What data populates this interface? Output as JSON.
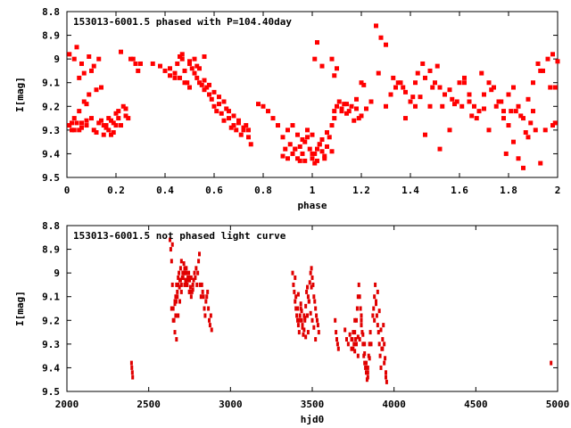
{
  "chart_data": [
    {
      "type": "scatter",
      "title": "153013-6001.5 phased with P=104.40day",
      "xlabel": "phase",
      "ylabel": "I[mag]",
      "xlim": [
        0,
        2
      ],
      "ylim": [
        9.5,
        8.8
      ],
      "y_inverted": true,
      "xticks": [
        "0",
        "0.2",
        "0.4",
        "0.6",
        "0.8",
        "1",
        "1.2",
        "1.4",
        "1.6",
        "1.8",
        "2"
      ],
      "yticks": [
        "8.8",
        "8.9",
        "9",
        "9.1",
        "9.2",
        "9.3",
        "9.4",
        "9.5"
      ],
      "marker_color": "#ff0000",
      "marker": "star",
      "series": [
        {
          "x": [
            0.01,
            0.02,
            0.03,
            0.04,
            0.05,
            0.06,
            0.07,
            0.08,
            0.09,
            0.1,
            0.11,
            0.12,
            0.13,
            0.14,
            0.15,
            0.16,
            0.17,
            0.18,
            0.19,
            0.2,
            0.21,
            0.22,
            0.23,
            0.24,
            0.25,
            0.26,
            0.27,
            0.28,
            0.29,
            0.3,
            0.01,
            0.03,
            0.05,
            0.07,
            0.09,
            0.12,
            0.15,
            0.18,
            0.21,
            0.24,
            0.03,
            0.06,
            0.1,
            0.14,
            0.2,
            0.05,
            0.08,
            0.11,
            0.16,
            0.19,
            0.22,
            0.02,
            0.04,
            0.06,
            0.08,
            0.13,
            0.17,
            0.35,
            0.38,
            0.4,
            0.42,
            0.44,
            0.45,
            0.46,
            0.47,
            0.48,
            0.49,
            0.5,
            0.51,
            0.52,
            0.53,
            0.54,
            0.55,
            0.56,
            0.57,
            0.58,
            0.59,
            0.6,
            0.61,
            0.62,
            0.63,
            0.64,
            0.65,
            0.66,
            0.67,
            0.68,
            0.69,
            0.7,
            0.71,
            0.72,
            0.73,
            0.74,
            0.75,
            0.42,
            0.44,
            0.46,
            0.48,
            0.5,
            0.52,
            0.54,
            0.56,
            0.58,
            0.6,
            0.62,
            0.64,
            0.66,
            0.68,
            0.7,
            0.72,
            0.74,
            0.47,
            0.5,
            0.53,
            0.56,
            0.78,
            0.8,
            0.82,
            0.84,
            0.86,
            0.88,
            0.89,
            0.9,
            0.91,
            0.92,
            0.93,
            0.94,
            0.95,
            0.96,
            0.97,
            0.98,
            0.99,
            1.0,
            1.01,
            1.02,
            1.03,
            1.04,
            1.05,
            1.06,
            1.07,
            1.08,
            1.09,
            1.1,
            1.11,
            1.12,
            1.13,
            1.14,
            1.15,
            1.16,
            1.17,
            1.18,
            1.19,
            1.2,
            1.22,
            1.24,
            0.9,
            0.92,
            0.94,
            0.96,
            0.98,
            1.0,
            1.02,
            1.04,
            0.93,
            0.97,
            1.01,
            1.05,
            1.08,
            0.88,
            0.95,
            1.0,
            1.03,
            1.06,
            1.09,
            1.12,
            1.14,
            1.18,
            1.01,
            1.02,
            1.04,
            1.08,
            1.09,
            1.1,
            1.2,
            1.21,
            1.26,
            1.28,
            1.3,
            1.27,
            1.3,
            1.32,
            1.34,
            1.36,
            1.38,
            1.4,
            1.42,
            1.44,
            1.46,
            1.48,
            1.5,
            1.52,
            1.54,
            1.56,
            1.58,
            1.6,
            1.62,
            1.64,
            1.66,
            1.68,
            1.7,
            1.72,
            1.74,
            1.76,
            1.78,
            1.8,
            1.82,
            1.84,
            1.86,
            1.88,
            1.9,
            1.92,
            1.94,
            1.96,
            1.98,
            2.0,
            1.33,
            1.37,
            1.41,
            1.45,
            1.49,
            1.53,
            1.57,
            1.61,
            1.65,
            1.69,
            1.73,
            1.77,
            1.81,
            1.85,
            1.89,
            1.93,
            1.97,
            1.35,
            1.43,
            1.51,
            1.59,
            1.67,
            1.75,
            1.83,
            1.91,
            1.99,
            1.38,
            1.46,
            1.52,
            1.62,
            1.7,
            1.78,
            1.8,
            1.82,
            1.84,
            1.86,
            1.88,
            1.9,
            1.95,
            1.98,
            1.42,
            1.48,
            1.56,
            1.64,
            1.72,
            1.79,
            1.87,
            1.93,
            1.99
          ],
          "y": [
            8.98,
            9.27,
            9.0,
            8.95,
            9.3,
            9.02,
            9.06,
            9.28,
            8.99,
            9.25,
            9.03,
            9.31,
            9.0,
            9.26,
            9.32,
            9.28,
            9.3,
            9.26,
            9.27,
            9.23,
            9.22,
            8.97,
            9.2,
            9.21,
            9.25,
            9.0,
            9.0,
            9.02,
            9.05,
            9.02,
            9.28,
            9.25,
            9.22,
            9.18,
            9.15,
            9.13,
            9.28,
            9.32,
            9.25,
            9.24,
            9.3,
            9.27,
            9.05,
            9.12,
            9.28,
            9.08,
            9.19,
            9.3,
            9.29,
            9.31,
            9.28,
            9.3,
            9.27,
            9.29,
            9.26,
            9.27,
            9.25,
            9.02,
            9.03,
            9.05,
            9.07,
            9.08,
            9.02,
            8.99,
            9.0,
            9.05,
            9.1,
            9.02,
            9.04,
            9.06,
            9.08,
            9.1,
            9.11,
            9.13,
            9.12,
            9.15,
            9.17,
            9.2,
            9.22,
            9.19,
            9.23,
            9.26,
            9.21,
            9.25,
            9.29,
            9.28,
            9.3,
            9.26,
            9.32,
            9.3,
            9.28,
            9.33,
            9.36,
            9.04,
            9.06,
            9.08,
            9.1,
            9.12,
            9.0,
            9.04,
            9.09,
            9.11,
            9.14,
            9.16,
            9.18,
            9.22,
            9.24,
            9.27,
            9.29,
            9.3,
            8.98,
            9.01,
            9.03,
            8.99,
            9.19,
            9.2,
            9.22,
            9.25,
            9.28,
            9.33,
            9.38,
            9.42,
            9.36,
            9.4,
            9.38,
            9.42,
            9.37,
            9.4,
            9.35,
            9.33,
            9.38,
            9.42,
            9.4,
            9.43,
            9.36,
            9.39,
            9.42,
            9.37,
            9.33,
            9.28,
            9.22,
            9.2,
            9.18,
            9.21,
            9.19,
            9.23,
            9.22,
            9.2,
            9.26,
            9.21,
            9.25,
            9.24,
            9.21,
            9.18,
            9.3,
            9.28,
            9.32,
            9.34,
            9.3,
            9.32,
            9.38,
            9.34,
            9.38,
            9.43,
            9.44,
            9.41,
            9.39,
            9.41,
            9.43,
            9.4,
            9.36,
            9.31,
            9.25,
            9.22,
            9.19,
            9.17,
            9.0,
            8.93,
            9.03,
            9.0,
            9.07,
            9.04,
            9.1,
            9.11,
            8.86,
            8.91,
            8.94,
            9.06,
            9.2,
            9.15,
            9.12,
            9.1,
            9.14,
            9.18,
            9.2,
            9.16,
            9.08,
            9.05,
            9.1,
            9.12,
            9.15,
            9.13,
            9.19,
            9.1,
            9.08,
            9.15,
            9.2,
            9.22,
            9.15,
            9.1,
            9.12,
            9.18,
            9.22,
            9.15,
            9.12,
            9.2,
            9.25,
            9.17,
            9.1,
            9.02,
            9.05,
            9.0,
            8.98,
            9.01,
            9.08,
            9.12,
            9.16,
            9.02,
            9.12,
            9.2,
            9.17,
            9.2,
            9.24,
            9.06,
            9.13,
            9.18,
            9.22,
            9.24,
            9.27,
            9.05,
            9.12,
            9.1,
            9.06,
            9.03,
            9.18,
            9.25,
            9.2,
            9.22,
            9.3,
            9.27,
            9.25,
            9.32,
            9.38,
            9.1,
            9.21,
            9.25,
            9.28,
            9.35,
            9.42,
            9.46,
            9.33,
            9.22,
            9.3,
            9.28,
            9.1,
            9.2,
            9.3,
            9.18,
            9.3,
            9.4,
            9.31,
            9.44,
            9.12
          ]
        }
      ]
    },
    {
      "type": "scatter",
      "title": "153013-6001.5 not phased light curve",
      "xlabel": "hjd0",
      "ylabel": "I[mag]",
      "xlim": [
        2000,
        5000
      ],
      "ylim": [
        9.5,
        8.8
      ],
      "y_inverted": true,
      "xticks": [
        "2000",
        "2500",
        "3000",
        "3500",
        "4000",
        "4500",
        "5000"
      ],
      "yticks": [
        "8.8",
        "8.9",
        "9",
        "9.1",
        "9.2",
        "9.3",
        "9.4",
        "9.5"
      ],
      "marker_color": "#e00000",
      "marker": "dot",
      "series": [
        {
          "x": [
            2395,
            2397,
            2400,
            2402,
            2630,
            2635,
            2640,
            2645,
            2650,
            2655,
            2660,
            2665,
            2670,
            2675,
            2680,
            2685,
            2690,
            2695,
            2700,
            2705,
            2710,
            2715,
            2720,
            2725,
            2730,
            2735,
            2740,
            2745,
            2750,
            2755,
            2760,
            2765,
            2770,
            2775,
            2780,
            2785,
            2790,
            2795,
            2800,
            2805,
            2810,
            2815,
            2820,
            2825,
            2830,
            2835,
            2840,
            2845,
            2850,
            2855,
            2860,
            2865,
            2870,
            2875,
            2880,
            2885,
            2640,
            2650,
            2660,
            2670,
            2680,
            2690,
            2700,
            2710,
            2720,
            2730,
            2740,
            2750,
            2760,
            2660,
            2680,
            2700,
            2720,
            2740,
            2665,
            2675,
            2695,
            2715,
            2735,
            2755,
            2770,
            2645,
            2668,
            2688,
            2708,
            2728,
            2748,
            3380,
            3385,
            3390,
            3395,
            3400,
            3405,
            3410,
            3415,
            3420,
            3425,
            3430,
            3435,
            3440,
            3445,
            3450,
            3455,
            3460,
            3465,
            3470,
            3475,
            3480,
            3485,
            3490,
            3495,
            3500,
            3505,
            3510,
            3515,
            3520,
            3525,
            3530,
            3535,
            3540,
            3400,
            3410,
            3420,
            3430,
            3440,
            3450,
            3460,
            3470,
            3480,
            3490,
            3500,
            3510,
            3520,
            3395,
            3415,
            3435,
            3455,
            3475,
            3495,
            3640,
            3645,
            3650,
            3655,
            3660,
            3700,
            3710,
            3720,
            3730,
            3740,
            3745,
            3750,
            3755,
            3760,
            3765,
            3770,
            3775,
            3780,
            3785,
            3790,
            3795,
            3800,
            3805,
            3810,
            3815,
            3820,
            3825,
            3830,
            3835,
            3840,
            3845,
            3850,
            3855,
            3860,
            3740,
            3750,
            3760,
            3770,
            3780,
            3790,
            3800,
            3810,
            3820,
            3830,
            3840,
            3850,
            3760,
            3780,
            3800,
            3820,
            3840,
            3870,
            3875,
            3880,
            3885,
            3890,
            3895,
            3900,
            3905,
            3910,
            3915,
            3920,
            3925,
            3930,
            3935,
            3940,
            3945,
            3950,
            3955,
            3880,
            3890,
            3900,
            3910,
            3920,
            3930,
            3940,
            3950,
            4960
          ],
          "y": [
            9.38,
            9.4,
            9.42,
            9.44,
            8.86,
            8.9,
            8.95,
            9.05,
            9.15,
            9.2,
            9.12,
            9.1,
            9.05,
            9.08,
            9.02,
            9.0,
            9.03,
            8.98,
            9.05,
            9.02,
            9.0,
            8.96,
            9.0,
            9.03,
            8.98,
            9.05,
            9.02,
            9.0,
            9.03,
            9.06,
            9.02,
            9.08,
            9.05,
            9.03,
            9.0,
            9.02,
            8.98,
            9.05,
            9.0,
            8.95,
            8.92,
            9.05,
            9.1,
            9.05,
            9.08,
            9.1,
            9.15,
            9.18,
            9.12,
            9.1,
            9.08,
            9.15,
            9.2,
            9.22,
            9.18,
            9.24,
            9.15,
            9.2,
            9.25,
            9.28,
            9.18,
            9.12,
            9.08,
            9.02,
            9.05,
            9.0,
            9.03,
            9.08,
            9.1,
            9.13,
            9.05,
            8.95,
            8.98,
            9.02,
            9.18,
            9.1,
            9.03,
            9.0,
            9.05,
            9.02,
            9.07,
            8.88,
            9.12,
            9.06,
            9.0,
            9.04,
            9.08,
            9.0,
            9.05,
            9.08,
            9.12,
            9.15,
            9.18,
            9.2,
            9.22,
            9.25,
            9.18,
            9.15,
            9.2,
            9.23,
            9.26,
            9.18,
            9.2,
            9.14,
            9.08,
            9.06,
            9.1,
            9.12,
            9.04,
            9.0,
            8.98,
            9.02,
            9.05,
            9.1,
            9.12,
            9.15,
            9.18,
            9.2,
            9.22,
            9.25,
            9.1,
            9.15,
            9.2,
            9.13,
            9.22,
            9.24,
            9.27,
            9.18,
            9.12,
            9.17,
            9.2,
            9.23,
            9.28,
            9.02,
            9.09,
            9.16,
            9.19,
            9.25,
            9.06,
            9.2,
            9.25,
            9.28,
            9.3,
            9.32,
            9.24,
            9.28,
            9.3,
            9.26,
            9.32,
            9.28,
            9.25,
            9.3,
            9.33,
            9.28,
            9.2,
            9.15,
            9.1,
            9.05,
            9.1,
            9.15,
            9.2,
            9.25,
            9.3,
            9.35,
            9.38,
            9.4,
            9.42,
            9.45,
            9.4,
            9.35,
            9.3,
            9.25,
            9.3,
            9.28,
            9.32,
            9.25,
            9.3,
            9.35,
            9.28,
            9.22,
            9.26,
            9.34,
            9.38,
            9.42,
            9.36,
            9.2,
            9.27,
            9.18,
            9.3,
            9.44,
            9.18,
            9.15,
            9.1,
            9.05,
            9.12,
            9.18,
            9.22,
            9.25,
            9.3,
            9.35,
            9.4,
            9.32,
            9.28,
            9.22,
            9.3,
            9.36,
            9.42,
            9.46,
            9.2,
            9.13,
            9.08,
            9.16,
            9.24,
            9.32,
            9.38,
            9.44,
            9.38
          ]
        }
      ]
    }
  ]
}
